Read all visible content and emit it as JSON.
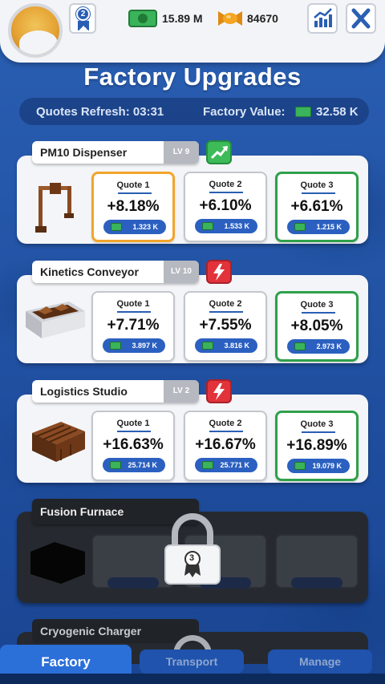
{
  "header": {
    "rank_badge": "2",
    "money": "15.89 M",
    "candy": "84670",
    "icons": [
      "avatar-icon",
      "rank-badge-icon",
      "money-icon",
      "candy-icon",
      "stats-icon",
      "close-icon"
    ]
  },
  "title": "Factory Upgrades",
  "info": {
    "quotes_refresh": "Quotes Refresh: 03:31",
    "factory_value_label": "Factory Value:",
    "factory_value": "32.58 K"
  },
  "cards": [
    {
      "name": "PM10 Dispenser",
      "level": "LV 9",
      "status_icon": "trend-up-icon",
      "quotes": [
        {
          "label": "Quote 1",
          "pct": "+8.18%",
          "price": "1.323 K",
          "highlight": "orange"
        },
        {
          "label": "Quote 2",
          "pct": "+6.10%",
          "price": "1.533 K",
          "highlight": "none"
        },
        {
          "label": "Quote 3",
          "pct": "+6.61%",
          "price": "1.215 K",
          "highlight": "green"
        }
      ]
    },
    {
      "name": "Kinetics Conveyor",
      "level": "LV 10",
      "status_icon": "lightning-icon",
      "quotes": [
        {
          "label": "Quote 1",
          "pct": "+7.71%",
          "price": "3.897 K",
          "highlight": "none"
        },
        {
          "label": "Quote 2",
          "pct": "+7.55%",
          "price": "3.816 K",
          "highlight": "none"
        },
        {
          "label": "Quote 3",
          "pct": "+8.05%",
          "price": "2.973 K",
          "highlight": "green"
        }
      ]
    },
    {
      "name": "Logistics Studio",
      "level": "LV 2",
      "status_icon": "lightning-icon",
      "quotes": [
        {
          "label": "Quote 1",
          "pct": "+16.63%",
          "price": "25.714 K",
          "highlight": "none"
        },
        {
          "label": "Quote 2",
          "pct": "+16.67%",
          "price": "25.771 K",
          "highlight": "none"
        },
        {
          "label": "Quote 3",
          "pct": "+16.89%",
          "price": "19.079 K",
          "highlight": "green"
        }
      ]
    }
  ],
  "locked": {
    "name": "Fusion Furnace",
    "required_rank": "3"
  },
  "locked_next": {
    "name": "Cryogenic Charger"
  },
  "tabs": {
    "factory": "Factory",
    "transport": "Transport",
    "manage": "Manage"
  },
  "colors": {
    "background": "#1f4e9f",
    "accent_blue": "#2b60c0",
    "best_orange": "#f2a52a",
    "best_green": "#2fa04b",
    "lightning_red": "#e2333a",
    "trend_green": "#3cbb58"
  }
}
